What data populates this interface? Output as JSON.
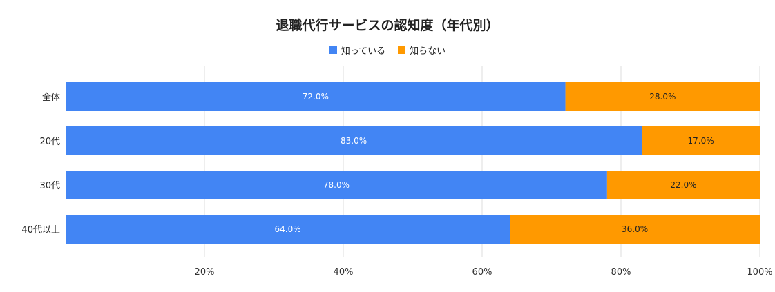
{
  "chart_data": {
    "type": "bar",
    "orientation": "horizontal",
    "stacked": true,
    "title": "退職代行サービスの認知度（年代別）",
    "categories": [
      "全体",
      "20代",
      "30代",
      "40代以上"
    ],
    "series": [
      {
        "name": "知っている",
        "color": "#4285f4",
        "values": [
          72.0,
          83.0,
          78.0,
          64.0
        ],
        "labels": [
          "72.0%",
          "83.0%",
          "78.0%",
          "64.0%"
        ]
      },
      {
        "name": "知らない",
        "color": "#ff9900",
        "values": [
          28.0,
          17.0,
          22.0,
          36.0
        ],
        "labels": [
          "28.0%",
          "17.0%",
          "22.0%",
          "36.0%"
        ]
      }
    ],
    "xlim": [
      0,
      100
    ],
    "xticks": [
      20,
      40,
      60,
      80,
      100
    ],
    "xtick_labels": [
      "20%",
      "40%",
      "60%",
      "80%",
      "100%"
    ],
    "grid": true,
    "legend_position": "top-center"
  }
}
